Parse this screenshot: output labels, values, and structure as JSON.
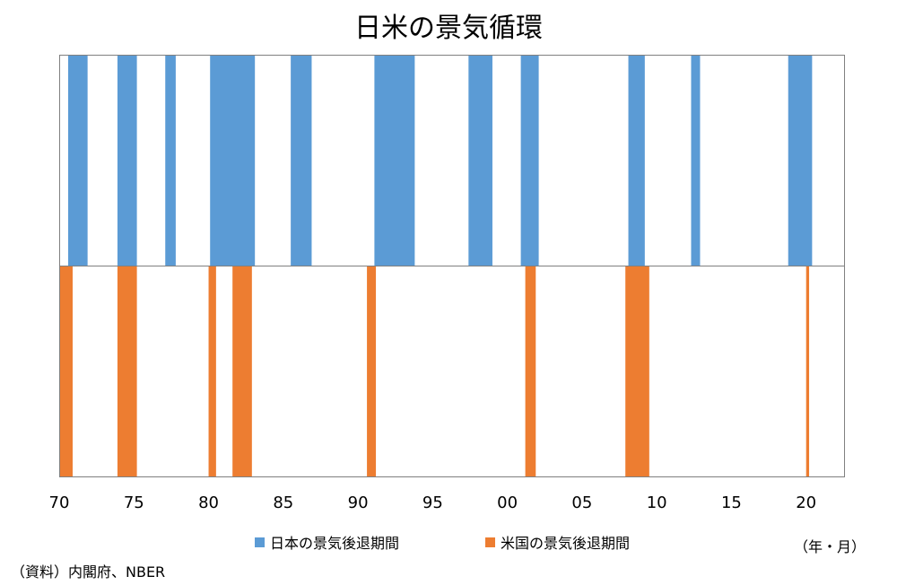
{
  "title": "日米の景気循環",
  "unit_note": "（年・月）",
  "source": "（資料）内閣府、NBER",
  "colors": {
    "japan": "#5B9BD5",
    "us": "#ED7D31",
    "border": "#808080"
  },
  "chart_data": {
    "type": "bar",
    "title": "日米の景気循環",
    "x_range": [
      1970,
      2022.6
    ],
    "x_ticks": [
      "70",
      "75",
      "80",
      "85",
      "90",
      "95",
      "00",
      "05",
      "10",
      "15",
      "20"
    ],
    "x_tick_values": [
      1970,
      1975,
      1980,
      1985,
      1990,
      1995,
      2000,
      2005,
      2010,
      2015,
      2020
    ],
    "legend_position": "bottom",
    "series": [
      {
        "name": "日本の景気後退期間",
        "color": "#5B9BD5",
        "periods": [
          [
            1970.6,
            1971.9
          ],
          [
            1973.9,
            1975.2
          ],
          [
            1977.1,
            1977.8
          ],
          [
            1980.1,
            1983.1
          ],
          [
            1985.5,
            1986.9
          ],
          [
            1991.1,
            1993.8
          ],
          [
            1997.4,
            1999.0
          ],
          [
            2000.9,
            2002.1
          ],
          [
            2008.1,
            2009.2
          ],
          [
            2012.3,
            2012.9
          ],
          [
            2018.8,
            2020.4
          ]
        ]
      },
      {
        "name": "米国の景気後退期間",
        "color": "#ED7D31",
        "periods": [
          [
            1970.0,
            1970.9
          ],
          [
            1973.9,
            1975.2
          ],
          [
            1980.0,
            1980.5
          ],
          [
            1981.6,
            1982.9
          ],
          [
            1990.6,
            1991.2
          ],
          [
            2001.2,
            2001.9
          ],
          [
            2007.9,
            2009.5
          ],
          [
            2020.0,
            2020.2
          ]
        ]
      }
    ]
  }
}
